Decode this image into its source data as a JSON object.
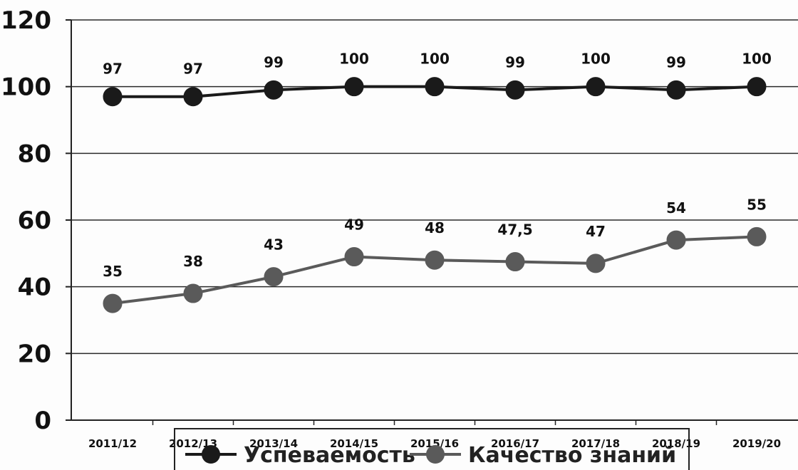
{
  "chart_data": {
    "type": "line",
    "title": "",
    "xlabel": "",
    "ylabel": "",
    "categories": [
      "2011/12",
      "2012/13",
      "2013/14",
      "2014/15",
      "2015/16",
      "2016/17",
      "2017/18",
      "2018/19",
      "2019/20"
    ],
    "y_ticks": [
      "0",
      "20",
      "40",
      "60",
      "80",
      "100",
      "120"
    ],
    "ylim": [
      0,
      120
    ],
    "grid": true,
    "legend_position": "bottom",
    "series": [
      {
        "name": "Успеваемость",
        "color": "#1a1a1a",
        "values": [
          97,
          97,
          99,
          100,
          100,
          99,
          100,
          99,
          100
        ],
        "labels": [
          "97",
          "97",
          "99",
          "100",
          "100",
          "99",
          "100",
          "99",
          "100"
        ]
      },
      {
        "name": "Качество знаний",
        "color": "#5a5a5a",
        "values": [
          35,
          38,
          43,
          49,
          48,
          47.5,
          47,
          54,
          55
        ],
        "labels": [
          "35",
          "38",
          "43",
          "49",
          "48",
          "47,5",
          "47",
          "54",
          "55"
        ]
      }
    ]
  }
}
